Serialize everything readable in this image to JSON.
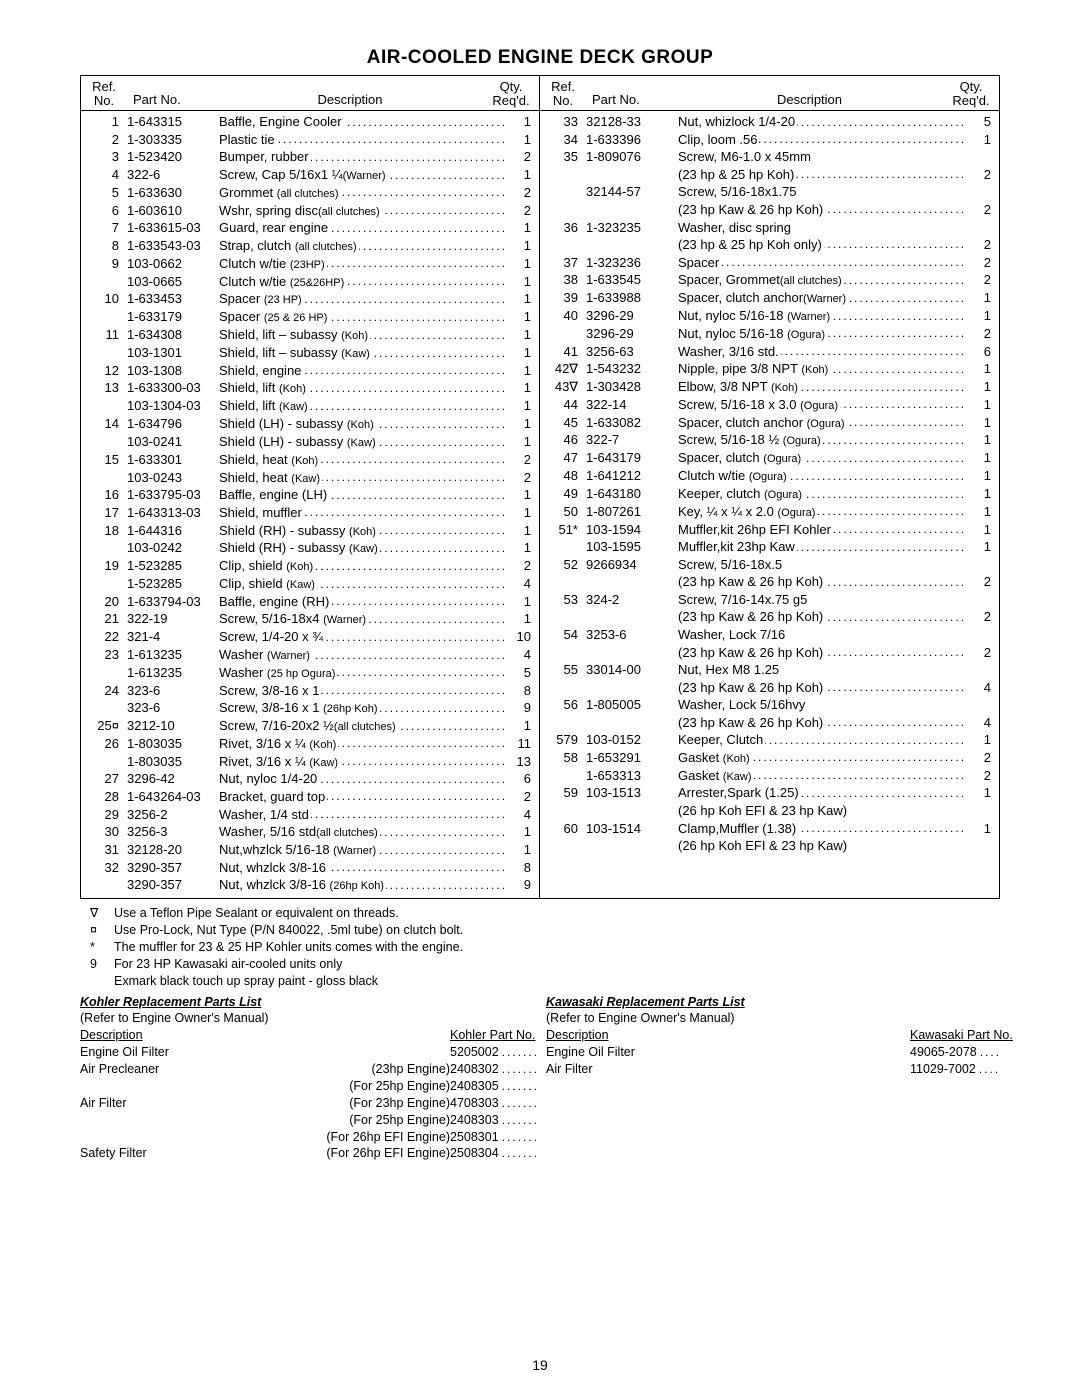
{
  "title": "AIR-COOLED ENGINE DECK GROUP",
  "header": {
    "ref1": "Ref.",
    "ref2": "No.",
    "part": "Part No.",
    "desc": "Description",
    "qty1": "Qty.",
    "qty2": "Req'd."
  },
  "left": [
    {
      "ref": "1",
      "part": "1-643315",
      "desc": "Baffle, Engine Cooler",
      "qty": "1"
    },
    {
      "ref": "2",
      "part": "1-303335",
      "desc": "Plastic tie",
      "qty": "1"
    },
    {
      "ref": "3",
      "part": "1-523420",
      "desc": "Bumper, rubber",
      "qty": "2"
    },
    {
      "ref": "4",
      "part": "322-6",
      "desc": "Screw, Cap 5/16x1 ¼",
      "note": "(Warner)",
      "qty": "1",
      "tight": true
    },
    {
      "ref": "5",
      "part": "1-633630",
      "desc": "Grommet",
      "note": "(all clutches)",
      "qty": "2"
    },
    {
      "ref": "6",
      "part": "1-603610",
      "desc": "Wshr, spring disc",
      "note": "(all clutches)",
      "qty": "2",
      "tight": true
    },
    {
      "ref": "7",
      "part": "1-633615-03",
      "desc": "Guard, rear engine",
      "qty": "1"
    },
    {
      "ref": "8",
      "part": "1-633543-03",
      "desc": "Strap, clutch",
      "note": "(all clutches)",
      "qty": "1"
    },
    {
      "ref": "9",
      "part": "103-0662",
      "desc": "Clutch w/tie",
      "note": "(23HP)",
      "qty": "1"
    },
    {
      "ref": "",
      "part": "103-0665",
      "desc": "Clutch w/tie",
      "note": "(25&26HP)",
      "qty": "1"
    },
    {
      "ref": "10",
      "part": "1-633453",
      "desc": "Spacer",
      "note": "(23 HP)",
      "qty": "1"
    },
    {
      "ref": "",
      "part": "1-633179",
      "desc": "Spacer",
      "note": "(25 & 26 HP)",
      "qty": "1"
    },
    {
      "ref": "11",
      "part": "1-634308",
      "desc": "Shield, lift – subassy",
      "note": "(Koh)",
      "qty": "1"
    },
    {
      "ref": "",
      "part": "103-1301",
      "desc": "Shield, lift – subassy",
      "note": "(Kaw)",
      "qty": "1"
    },
    {
      "ref": "12",
      "part": "103-1308",
      "desc": "Shield, engine",
      "qty": "1"
    },
    {
      "ref": "13",
      "part": "1-633300-03",
      "desc": "Shield, lift",
      "note": "(Koh)",
      "qty": "1"
    },
    {
      "ref": "",
      "part": "103-1304-03",
      "desc": "Shield, lift",
      "note": "(Kaw)",
      "qty": "1"
    },
    {
      "ref": "14",
      "part": "1-634796",
      "desc": "Shield (LH) - subassy",
      "note": "(Koh)",
      "qty": "1"
    },
    {
      "ref": "",
      "part": "103-0241",
      "desc": "Shield (LH) - subassy",
      "note": "(Kaw)",
      "qty": "1"
    },
    {
      "ref": "15",
      "part": "1-633301",
      "desc": "Shield, heat",
      "note": "(Koh)",
      "qty": "2"
    },
    {
      "ref": "",
      "part": "103-0243",
      "desc": "Shield, heat",
      "note": "(Kaw)",
      "qty": "2"
    },
    {
      "ref": "16",
      "part": "1-633795-03",
      "desc": "Baffle, engine (LH)",
      "qty": "1"
    },
    {
      "ref": "17",
      "part": "1-643313-03",
      "desc": "Shield, muffler",
      "qty": "1"
    },
    {
      "ref": "18",
      "part": "1-644316",
      "desc": "Shield (RH) - subassy",
      "note": "(Koh)",
      "qty": "1"
    },
    {
      "ref": "",
      "part": "103-0242",
      "desc": "Shield (RH) - subassy",
      "note": "(Kaw)",
      "qty": "1"
    },
    {
      "ref": "19",
      "part": "1-523285",
      "desc": "Clip, shield",
      "note": "(Koh)",
      "qty": "2"
    },
    {
      "ref": "",
      "part": "1-523285",
      "desc": "Clip, shield",
      "note": "(Kaw)",
      "qty": "4"
    },
    {
      "ref": "20",
      "part": "1-633794-03",
      "desc": "Baffle, engine (RH)",
      "qty": "1"
    },
    {
      "ref": "21",
      "part": "322-19",
      "desc": "Screw, 5/16-18x4",
      "note": "(Warner)",
      "qty": "1"
    },
    {
      "ref": "22",
      "part": "321-4",
      "desc": "Screw, 1/4-20 x ¾",
      "qty": "10"
    },
    {
      "ref": "23",
      "part": "1-613235",
      "desc": "Washer",
      "note": "(Warner)",
      "qty": "4"
    },
    {
      "ref": "",
      "part": "1-613235",
      "desc": "Washer",
      "note": "(25 hp Ogura)",
      "qty": "5"
    },
    {
      "ref": "24",
      "part": "323-6",
      "desc": "Screw, 3/8-16 x 1",
      "qty": "8"
    },
    {
      "ref": "",
      "part": "323-6",
      "desc": "Screw, 3/8-16 x 1",
      "note": "(26hp Koh)",
      "qty": "9"
    },
    {
      "ref": "25¤",
      "part": "3212-10",
      "desc": "Screw, 7/16-20x2 ½",
      "note": "(all clutches)",
      "qty": "1",
      "tight": true
    },
    {
      "ref": "26",
      "part": "1-803035",
      "desc": "Rivet, 3/16 x ¼",
      "note": "(Koh)",
      "qty": "11"
    },
    {
      "ref": "",
      "part": "1-803035",
      "desc": "Rivet, 3/16 x ¼",
      "note": "(Kaw)",
      "qty": "13"
    },
    {
      "ref": "27",
      "part": "3296-42",
      "desc": "Nut, nyloc 1/4-20",
      "qty": "6"
    },
    {
      "ref": "28",
      "part": "1-643264-03",
      "desc": "Bracket, guard top",
      "qty": "2"
    },
    {
      "ref": "29",
      "part": "3256-2",
      "desc": "Washer, 1/4 std",
      "qty": "4"
    },
    {
      "ref": "30",
      "part": "3256-3",
      "desc": "Washer, 5/16 std",
      "note": "(all clutches)",
      "qty": "1",
      "tight": true
    },
    {
      "ref": "31",
      "part": "32128-20",
      "desc": "Nut,whzlck 5/16-18",
      "note": "(Warner)",
      "qty": "1"
    },
    {
      "ref": "32",
      "part": "3290-357",
      "desc": "Nut, whzlck 3/8-16",
      "qty": "8"
    },
    {
      "ref": "",
      "part": "3290-357",
      "desc": "Nut, whzlck 3/8-16",
      "note": "(26hp Koh)",
      "qty": "9"
    }
  ],
  "right": [
    {
      "ref": "33",
      "part": "32128-33",
      "desc": "Nut, whizlock 1/4-20",
      "qty": "5"
    },
    {
      "ref": "34",
      "part": "1-633396",
      "desc": "Clip, loom .56",
      "qty": "1"
    },
    {
      "ref": "35",
      "part": "1-809076",
      "desc": "Screw, M6-1.0 x 45mm",
      "nodots": true
    },
    {
      "ref": "",
      "part": "",
      "desc": "(23 hp & 25 hp Koh)",
      "qty": "2",
      "indent": true
    },
    {
      "ref": "",
      "part": "32144-57",
      "desc": "Screw, 5/16-18x1.75",
      "nodots": true
    },
    {
      "ref": "",
      "part": "",
      "desc": "(23 hp Kaw & 26 hp Koh)",
      "qty": "2",
      "indent": true
    },
    {
      "ref": "36",
      "part": "1-323235",
      "desc": "Washer, disc spring",
      "nodots": true
    },
    {
      "ref": "",
      "part": "",
      "desc": "(23 hp & 25 hp Koh only)",
      "qty": "2",
      "indent": true
    },
    {
      "ref": "37",
      "part": "1-323236",
      "desc": "Spacer",
      "qty": "2"
    },
    {
      "ref": "38",
      "part": "1-633545",
      "desc": "Spacer, Grommet",
      "note": "(all clutches)",
      "qty": "2",
      "tight": true
    },
    {
      "ref": "39",
      "part": "1-633988",
      "desc": "Spacer, clutch anchor",
      "note": "(Warner)",
      "qty": "1",
      "tight": true
    },
    {
      "ref": "40",
      "part": "3296-29",
      "desc": "Nut, nyloc 5/16-18",
      "note": "(Warner)",
      "qty": "1"
    },
    {
      "ref": "",
      "part": "3296-29",
      "desc": "Nut, nyloc 5/16-18",
      "note": "(Ogura)",
      "qty": "2"
    },
    {
      "ref": "41",
      "part": "3256-63",
      "desc": "Washer, 3/16 std.",
      "qty": "6"
    },
    {
      "ref": "42∇",
      "part": "1-543232",
      "desc": "Nipple, pipe 3/8 NPT",
      "note": "(Koh)",
      "qty": "1"
    },
    {
      "ref": "43∇",
      "part": "1-303428",
      "desc": "Elbow, 3/8 NPT",
      "note": "(Koh)",
      "qty": "1"
    },
    {
      "ref": "44",
      "part": "322-14",
      "desc": "Screw, 5/16-18 x 3.0",
      "note": "(Ogura)",
      "qty": "1"
    },
    {
      "ref": "45",
      "part": "1-633082",
      "desc": "Spacer, clutch anchor",
      "note": "(Ogura)",
      "qty": "1"
    },
    {
      "ref": "46",
      "part": "322-7",
      "desc": "Screw, 5/16-18 ½",
      "note": "(Ogura)",
      "qty": "1"
    },
    {
      "ref": "47",
      "part": "1-643179",
      "desc": "Spacer, clutch",
      "note": "(Ogura)",
      "qty": "1"
    },
    {
      "ref": "48",
      "part": "1-641212",
      "desc": "Clutch w/tie",
      "note": "(Ogura)",
      "qty": "1"
    },
    {
      "ref": "49",
      "part": "1-643180",
      "desc": "Keeper, clutch",
      "note": "(Ogura)",
      "qty": "1"
    },
    {
      "ref": "50",
      "part": "1-807261",
      "desc": "Key, ¼ x ¼ x 2.0",
      "note": "(Ogura)",
      "qty": "1"
    },
    {
      "ref": "51*",
      "part": "103-1594",
      "desc": "Muffler,kit 26hp EFI Kohler",
      "qty": "1"
    },
    {
      "ref": "",
      "part": "103-1595",
      "desc": "Muffler,kit 23hp Kaw",
      "qty": "1"
    },
    {
      "ref": "52",
      "part": "9266934",
      "desc": "Screw, 5/16-18x.5",
      "nodots": true
    },
    {
      "ref": "",
      "part": "",
      "desc": "(23 hp Kaw & 26 hp Koh)",
      "qty": "2",
      "indent": true
    },
    {
      "ref": "53",
      "part": "324-2",
      "desc": "Screw, 7/16-14x.75 g5",
      "nodots": true
    },
    {
      "ref": "",
      "part": "",
      "desc": "(23 hp Kaw & 26 hp Koh)",
      "qty": "2",
      "indent": true
    },
    {
      "ref": "54",
      "part": "3253-6",
      "desc": "Washer, Lock 7/16",
      "nodots": true
    },
    {
      "ref": "",
      "part": "",
      "desc": "(23 hp Kaw & 26 hp Koh)",
      "qty": "2",
      "indent": true
    },
    {
      "ref": "55",
      "part": "33014-00",
      "desc": "Nut, Hex M8 1.25",
      "nodots": true
    },
    {
      "ref": "",
      "part": "",
      "desc": "(23 hp Kaw & 26 hp Koh)",
      "qty": "4",
      "indent": true
    },
    {
      "ref": "56",
      "part": "1-805005",
      "desc": "Washer, Lock 5/16hvy",
      "nodots": true
    },
    {
      "ref": "",
      "part": "",
      "desc": "(23 hp Kaw & 26 hp Koh)",
      "qty": "4",
      "indent": true
    },
    {
      "ref": "579",
      "part": "103-0152",
      "desc": "Keeper, Clutch",
      "qty": "1"
    },
    {
      "ref": "58",
      "part": "1-653291",
      "desc": "Gasket",
      "note": "(Koh)",
      "qty": "2"
    },
    {
      "ref": "",
      "part": "1-653313",
      "desc": "Gasket",
      "note": "(Kaw)",
      "qty": "2"
    },
    {
      "ref": "59",
      "part": "103-1513",
      "desc": "Arrester,Spark (1.25)",
      "qty": "1"
    },
    {
      "ref": "",
      "part": "",
      "desc": "(26 hp Koh EFI & 23 hp Kaw)",
      "indent": true,
      "nodots": true
    },
    {
      "ref": "60",
      "part": "103-1514",
      "desc": "Clamp,Muffler (1.38)",
      "qty": "1"
    },
    {
      "ref": "",
      "part": "",
      "desc": "(26 hp Koh EFI & 23 hp Kaw)",
      "indent": true,
      "nodots": true
    }
  ],
  "footnotes": [
    {
      "sym": "∇",
      "txt": "Use a Teflon Pipe Sealant or equivalent on threads."
    },
    {
      "sym": "¤",
      "txt": "Use Pro-Lock, Nut Type (P/N 840022, .5ml tube) on clutch bolt."
    },
    {
      "sym": "*",
      "txt": "The muffler for 23 & 25 HP Kohler units comes with the engine."
    },
    {
      "sym": "9",
      "txt": "For 23 HP Kawasaki air-cooled units only"
    },
    {
      "sym": "",
      "txt": "Exmark black touch up spray paint - gloss black"
    }
  ],
  "kohler": {
    "title": "Kohler Replacement Parts List",
    "refer": "(Refer to Engine Owner's Manual)",
    "hdr_desc": "Description",
    "hdr_part": "Kohler Part No.",
    "rows": [
      {
        "d": "Engine Oil Filter",
        "e": "",
        "p": "5205002",
        "dots": true
      },
      {
        "d": "Air Precleaner",
        "e": "(23hp Engine)",
        "p": "2408302",
        "dots": true
      },
      {
        "d": "",
        "e": "(For 25hp Engine)",
        "p": "2408305",
        "dots": true
      },
      {
        "d": "Air Filter",
        "e": "(For 23hp Engine)",
        "p": "4708303",
        "dots": true
      },
      {
        "d": "",
        "e": "(For 25hp Engine)",
        "p": "2408303",
        "dots": true
      },
      {
        "d": "",
        "e": "(For 26hp EFI Engine)",
        "p": "2508301",
        "dots": true
      },
      {
        "d": "Safety Filter",
        "e": "(For 26hp EFI Engine)",
        "p": "2508304",
        "dots": true
      }
    ]
  },
  "kawasaki": {
    "title": "Kawasaki Replacement Parts List",
    "refer": "(Refer to Engine Owner's Manual)",
    "hdr_desc": "Description",
    "hdr_part": "Kawasaki Part No.",
    "rows": [
      {
        "d": "Engine Oil Filter",
        "e": "",
        "p": "49065-2078",
        "dots": true
      },
      {
        "d": "Air Filter",
        "e": "",
        "p": "11029-7002",
        "dots": true
      }
    ]
  },
  "pagenum": "19"
}
